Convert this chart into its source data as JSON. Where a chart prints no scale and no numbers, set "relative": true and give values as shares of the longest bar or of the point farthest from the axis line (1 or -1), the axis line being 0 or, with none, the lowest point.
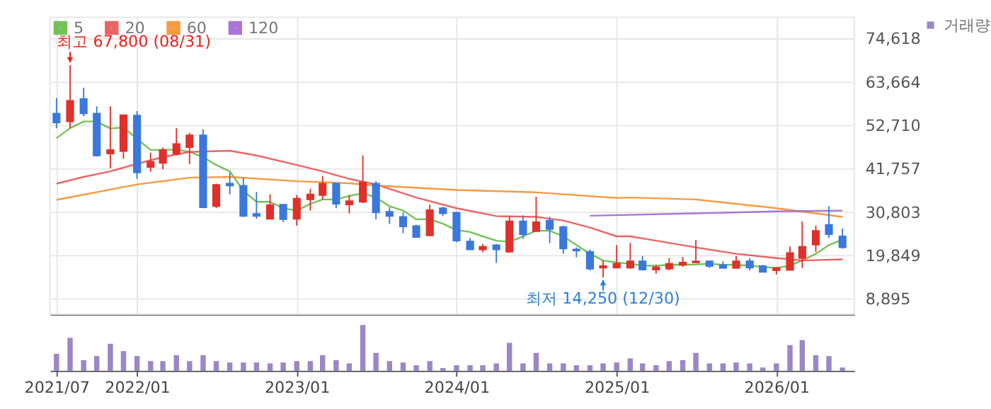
{
  "chart_data": [
    {
      "type": "candlestick",
      "x": [
        "2021-07",
        "2021-08",
        "2021-09",
        "2021-10",
        "2021-11",
        "2021-12",
        "2022-01",
        "2022-02",
        "2022-03",
        "2022-04",
        "2022-05",
        "2022-06",
        "2022-07",
        "2022-08",
        "2022-09",
        "2022-10",
        "2022-11",
        "2022-12",
        "2023-01",
        "2023-02",
        "2023-03",
        "2023-04",
        "2023-05",
        "2023-06",
        "2023-07",
        "2023-08",
        "2023-09",
        "2023-10",
        "2023-11",
        "2023-12",
        "2024-01",
        "2024-02",
        "2024-03",
        "2024-04",
        "2024-05",
        "2024-06",
        "2024-07",
        "2024-08",
        "2024-09",
        "2024-10",
        "2024-11",
        "2024-12",
        "2025-01",
        "2025-02",
        "2025-03",
        "2025-04",
        "2025-05",
        "2025-06",
        "2025-07",
        "2025-08",
        "2025-09",
        "2025-10",
        "2025-11",
        "2025-12",
        "2026-01",
        "2026-02",
        "2026-03",
        "2026-04",
        "2026-05",
        "2026-06"
      ],
      "ohlc": [
        [
          55600,
          59500,
          51900,
          53300
        ],
        [
          53600,
          67800,
          51900,
          58800
        ],
        [
          59300,
          62100,
          54900,
          55600
        ],
        [
          55600,
          57400,
          44700,
          45000
        ],
        [
          45500,
          57400,
          41800,
          46400
        ],
        [
          46100,
          55200,
          44200,
          55200
        ],
        [
          55100,
          56200,
          39100,
          40700
        ],
        [
          42100,
          45700,
          40900,
          43400
        ],
        [
          43100,
          47000,
          41500,
          46400
        ],
        [
          45400,
          51900,
          45000,
          47900
        ],
        [
          47100,
          50700,
          42800,
          50100
        ],
        [
          50100,
          51600,
          31700,
          31900
        ],
        [
          32200,
          37900,
          31700,
          37600
        ],
        [
          37900,
          40700,
          35200,
          37400
        ],
        [
          37400,
          39400,
          29500,
          29700
        ],
        [
          30300,
          35800,
          29000,
          29700
        ],
        [
          29000,
          35200,
          28900,
          32500
        ],
        [
          32600,
          32600,
          28200,
          28900
        ],
        [
          29000,
          35000,
          27300,
          34100
        ],
        [
          33900,
          36600,
          31100,
          35200
        ],
        [
          35000,
          39800,
          33900,
          37900
        ],
        [
          37900,
          38200,
          31700,
          32800
        ],
        [
          32600,
          35000,
          30400,
          33500
        ],
        [
          33300,
          45000,
          33000,
          38200
        ],
        [
          37900,
          38500,
          28900,
          30600
        ],
        [
          30800,
          31900,
          27700,
          29700
        ],
        [
          29500,
          30600,
          25400,
          27100
        ],
        [
          27200,
          27500,
          24400,
          24400
        ],
        [
          24800,
          32600,
          24800,
          31200
        ],
        [
          31700,
          32100,
          29700,
          30400
        ],
        [
          30600,
          30800,
          23100,
          23500
        ],
        [
          23300,
          24200,
          21300,
          21300
        ],
        [
          21300,
          22700,
          20600,
          22000
        ],
        [
          22400,
          22700,
          17900,
          21300
        ],
        [
          20700,
          29700,
          20500,
          28400
        ],
        [
          28400,
          29900,
          24000,
          25100
        ],
        [
          25900,
          34600,
          25900,
          28200
        ],
        [
          28600,
          29500,
          22900,
          26400
        ],
        [
          27000,
          27300,
          20200,
          21500
        ],
        [
          21300,
          21800,
          19300,
          21000
        ],
        [
          20700,
          21300,
          16000,
          16400
        ],
        [
          16700,
          18500,
          14250,
          17100
        ],
        [
          16700,
          22400,
          16600,
          17700
        ],
        [
          16700,
          22900,
          16400,
          18300
        ],
        [
          18300,
          19600,
          16000,
          16200
        ],
        [
          16200,
          17400,
          15200,
          16800
        ],
        [
          16400,
          19100,
          16000,
          17700
        ],
        [
          17400,
          19400,
          16900,
          18000
        ],
        [
          18000,
          23700,
          18000,
          18300
        ],
        [
          18300,
          18300,
          16600,
          17100
        ],
        [
          17400,
          18300,
          16600,
          16600
        ],
        [
          16600,
          19600,
          16600,
          18300
        ],
        [
          18300,
          19100,
          16000,
          16700
        ],
        [
          17100,
          17400,
          15600,
          15600
        ],
        [
          16000,
          16800,
          15000,
          16600
        ],
        [
          16100,
          22000,
          16100,
          20400
        ],
        [
          19100,
          28400,
          16600,
          22000
        ],
        [
          22500,
          27300,
          20700,
          26000
        ],
        [
          27500,
          32200,
          24200,
          25100
        ],
        [
          24600,
          26600,
          21500,
          21800
        ]
      ],
      "colors": [
        "#3a78dc",
        "#e0302a",
        "#3a78dc",
        "#3a78dc",
        "#e0302a",
        "#e0302a",
        "#3a78dc",
        "#e0302a",
        "#e0302a",
        "#e0302a",
        "#e0302a",
        "#3a78dc",
        "#e0302a",
        "#3a78dc",
        "#3a78dc",
        "#3a78dc",
        "#e0302a",
        "#3a78dc",
        "#e0302a",
        "#e0302a",
        "#e0302a",
        "#3a78dc",
        "#e0302a",
        "#e0302a",
        "#3a78dc",
        "#3a78dc",
        "#3a78dc",
        "#3a78dc",
        "#e0302a",
        "#3a78dc",
        "#3a78dc",
        "#3a78dc",
        "#e0302a",
        "#3a78dc",
        "#e0302a",
        "#3a78dc",
        "#e0302a",
        "#3a78dc",
        "#3a78dc",
        "#3a78dc",
        "#3a78dc",
        "#e0302a",
        "#e0302a",
        "#e0302a",
        "#3a78dc",
        "#e0302a",
        "#e0302a",
        "#e0302a",
        "#e0302a",
        "#3a78dc",
        "#3a78dc",
        "#e0302a",
        "#3a78dc",
        "#3a78dc",
        "#e0302a",
        "#e0302a",
        "#e0302a",
        "#e0302a",
        "#3a78dc",
        "#3a78dc"
      ],
      "series": [
        {
          "name": "5",
          "type": "line",
          "color": "#5cb83c",
          "x": [
            "2021-07",
            "2021-08",
            "2021-09",
            "2021-10",
            "2021-11",
            "2021-12",
            "2022-01",
            "2022-02",
            "2022-03",
            "2022-04",
            "2022-05",
            "2022-06",
            "2022-07",
            "2022-08",
            "2022-09",
            "2022-10",
            "2022-11",
            "2022-12",
            "2023-01",
            "2023-02",
            "2023-03",
            "2023-04",
            "2023-05",
            "2023-06",
            "2023-07",
            "2023-08",
            "2023-09",
            "2023-10",
            "2023-11",
            "2023-12",
            "2024-01",
            "2024-02",
            "2024-03",
            "2024-04",
            "2024-05",
            "2024-06",
            "2024-07",
            "2024-08",
            "2024-09",
            "2024-10",
            "2024-11",
            "2024-12",
            "2025-01",
            "2025-02",
            "2025-03",
            "2025-04",
            "2025-05",
            "2025-06",
            "2025-07",
            "2025-08",
            "2025-09",
            "2025-10",
            "2025-11",
            "2025-12",
            "2026-01",
            "2026-02",
            "2026-03",
            "2026-04",
            "2026-05",
            "2026-06"
          ],
          "values": [
            49400,
            51900,
            53600,
            53600,
            51800,
            52100,
            49200,
            46400,
            46400,
            46500,
            45900,
            44600,
            42600,
            41000,
            36100,
            33300,
            33300,
            31700,
            31100,
            32800,
            33900,
            33900,
            34800,
            35500,
            34400,
            32200,
            31100,
            28900,
            28900,
            27800,
            26200,
            25700,
            24600,
            23500,
            23200,
            24600,
            26000,
            26000,
            24600,
            22400,
            20200,
            18500,
            18000,
            17700,
            17200,
            17200,
            17400,
            17400,
            17500,
            17700,
            17400,
            17400,
            17200,
            16900,
            16600,
            17200,
            18500,
            20200,
            22400,
            23800
          ]
        },
        {
          "name": "20",
          "type": "line",
          "color": "#e84a4a",
          "x": [
            "2021-07",
            "2021-09",
            "2021-11",
            "2022-01",
            "2022-03",
            "2022-05",
            "2022-08",
            "2022-10",
            "2023-01",
            "2023-03",
            "2023-05",
            "2023-07",
            "2023-10",
            "2024-01",
            "2024-04",
            "2024-07",
            "2024-09",
            "2024-11",
            "2025-01",
            "2025-02",
            "2025-04",
            "2025-07",
            "2025-10",
            "2026-01",
            "2026-03",
            "2026-06"
          ],
          "values": [
            37900,
            39600,
            41000,
            42900,
            44600,
            45900,
            46200,
            45000,
            42600,
            41000,
            39100,
            37700,
            34400,
            31700,
            29700,
            29500,
            28600,
            26800,
            24600,
            24600,
            23500,
            21800,
            20200,
            19100,
            18500,
            18800
          ]
        },
        {
          "name": "60",
          "type": "line",
          "color": "#f5891e",
          "x": [
            "2021-07",
            "2022-01",
            "2022-05",
            "2022-08",
            "2023-01",
            "2023-05",
            "2023-07",
            "2024-01",
            "2024-07",
            "2025-01",
            "2025-02",
            "2025-07",
            "2026-01",
            "2026-06"
          ],
          "values": [
            33800,
            37700,
            39400,
            39600,
            38500,
            38000,
            37400,
            36300,
            35700,
            34300,
            34400,
            33900,
            31700,
            29500
          ]
        },
        {
          "name": "120",
          "type": "line",
          "color": "#9c5fd0",
          "x": [
            "2024-11",
            "2025-07",
            "2026-01",
            "2026-06"
          ],
          "values": [
            29800,
            30400,
            30900,
            31100
          ]
        }
      ],
      "annotations": [
        {
          "text": "최고 67,800 (08/31)",
          "x": "2021-08",
          "y": 67800
        },
        {
          "text": "최저 14,250 (12/30)",
          "x": "2024-12",
          "y": 14250
        }
      ],
      "xlim": [
        "2021-06-16",
        "2026-06-28"
      ],
      "xticks": [
        {
          "value": "2021-07",
          "label": null
        },
        {
          "value": "2022-01",
          "label": null
        },
        {
          "value": "2023-01",
          "label": null
        },
        {
          "value": "2024-01",
          "label": null
        },
        {
          "value": "2025-01",
          "label": null
        },
        {
          "value": "2026-01",
          "label": null
        }
      ],
      "ylim": [
        4950,
        79880
      ],
      "yticks": [
        {
          "value": 8895,
          "label": "8,895"
        },
        {
          "value": 19849,
          "label": "19,849"
        },
        {
          "value": 30803,
          "label": "30,803"
        },
        {
          "value": 41757,
          "label": "41,757"
        },
        {
          "value": 52710,
          "label": "52,710"
        },
        {
          "value": 63664,
          "label": "63,664"
        },
        {
          "value": 74618,
          "label": "74,618"
        }
      ],
      "grid": true,
      "legend": "top left",
      "tick_labels": "y"
    },
    {
      "type": "bar",
      "relative": true,
      "x": [
        "2021-07",
        "2021-08",
        "2021-09",
        "2021-10",
        "2021-11",
        "2021-12",
        "2022-01",
        "2022-02",
        "2022-03",
        "2022-04",
        "2022-05",
        "2022-06",
        "2022-07",
        "2022-08",
        "2022-09",
        "2022-10",
        "2022-11",
        "2022-12",
        "2023-01",
        "2023-02",
        "2023-03",
        "2023-04",
        "2023-05",
        "2023-06",
        "2023-07",
        "2023-08",
        "2023-09",
        "2023-10",
        "2023-11",
        "2023-12",
        "2024-01",
        "2024-02",
        "2024-03",
        "2024-04",
        "2024-05",
        "2024-06",
        "2024-07",
        "2024-08",
        "2024-09",
        "2024-10",
        "2024-11",
        "2024-12",
        "2025-01",
        "2025-02",
        "2025-03",
        "2025-04",
        "2025-05",
        "2025-06",
        "2025-07",
        "2025-08",
        "2025-09",
        "2025-10",
        "2025-11",
        "2025-12",
        "2026-01",
        "2026-02",
        "2026-03",
        "2026-04",
        "2026-05",
        "2026-06"
      ],
      "series": [
        {
          "name": "거래량",
          "color": "#9b86c8",
          "values": [
            0.37,
            0.72,
            0.23,
            0.32,
            0.59,
            0.43,
            0.32,
            0.21,
            0.21,
            0.34,
            0.21,
            0.34,
            0.21,
            0.18,
            0.18,
            0.18,
            0.16,
            0.18,
            0.21,
            0.21,
            0.34,
            0.23,
            0.16,
            1,
            0.39,
            0.21,
            0.18,
            0.12,
            0.21,
            0.06,
            0.12,
            0.12,
            0.12,
            0.16,
            0.61,
            0.16,
            0.39,
            0.16,
            0.16,
            0.12,
            0.12,
            0.16,
            0.18,
            0.27,
            0.16,
            0.12,
            0.21,
            0.23,
            0.39,
            0.16,
            0.16,
            0.18,
            0.16,
            0.07,
            0.16,
            0.56,
            0.67,
            0.34,
            0.32,
            0.07
          ]
        }
      ],
      "xlim": [
        "2021-06-16",
        "2026-06-28"
      ],
      "xticks": [
        {
          "value": "2021-07",
          "label": "2021/07"
        },
        {
          "value": "2022-01",
          "label": "2022/01"
        },
        {
          "value": "2023-01",
          "label": "2023/01"
        },
        {
          "value": "2024-01",
          "label": "2024/01"
        },
        {
          "value": "2025-01",
          "label": "2025/01"
        },
        {
          "value": "2026-01",
          "label": "2026/01"
        }
      ],
      "legend": "right",
      "tick_labels": "x"
    }
  ]
}
